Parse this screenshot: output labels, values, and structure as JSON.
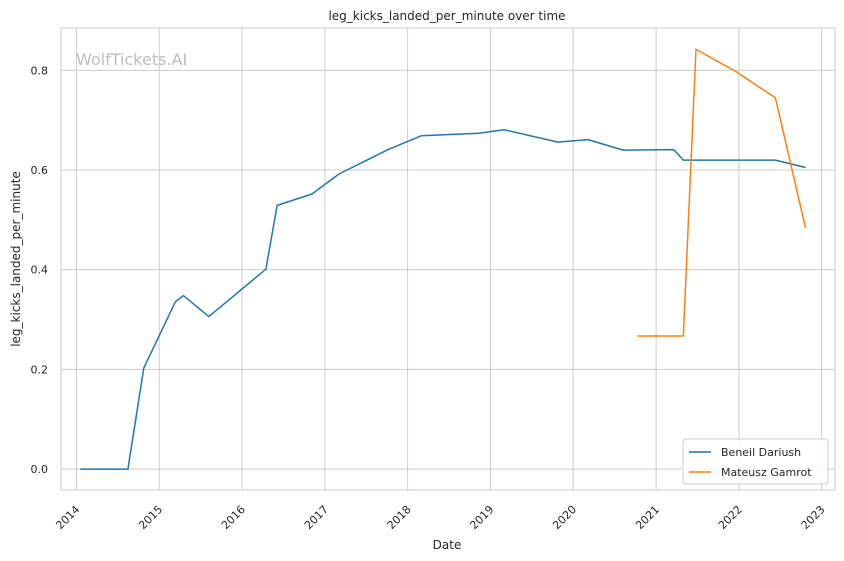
{
  "watermark": "WolfTickets.AI",
  "chart_data": {
    "type": "line",
    "title": "leg_kicks_landed_per_minute over time",
    "xlabel": "Date",
    "ylabel": "leg_kicks_landed_per_minute",
    "x_ticks": [
      "2014",
      "2015",
      "2016",
      "2017",
      "2018",
      "2019",
      "2020",
      "2021",
      "2022",
      "2023"
    ],
    "y_ticks": [
      "0.0",
      "0.2",
      "0.4",
      "0.6",
      "0.8"
    ],
    "xlim": [
      "2013-10-25",
      "2023-03-01"
    ],
    "ylim": [
      -0.042,
      0.885
    ],
    "grid": true,
    "legend_position": "lower-right",
    "series": [
      {
        "name": "Beneil Dariush",
        "color": "#1f77b4",
        "points": [
          [
            "2014-01-18",
            0.0
          ],
          [
            "2014-08-16",
            0.0
          ],
          [
            "2014-10-25",
            0.203
          ],
          [
            "2015-03-14",
            0.336
          ],
          [
            "2015-04-18",
            0.348
          ],
          [
            "2015-08-08",
            0.306
          ],
          [
            "2016-04-16",
            0.401
          ],
          [
            "2016-06-04",
            0.529
          ],
          [
            "2016-11-05",
            0.552
          ],
          [
            "2017-03-04",
            0.592
          ],
          [
            "2017-10-07",
            0.641
          ],
          [
            "2018-03-03",
            0.669
          ],
          [
            "2018-11-10",
            0.674
          ],
          [
            "2019-03-02",
            0.681
          ],
          [
            "2019-10-26",
            0.656
          ],
          [
            "2020-03-07",
            0.661
          ],
          [
            "2020-08-08",
            0.64
          ],
          [
            "2021-03-20",
            0.641
          ],
          [
            "2021-05-01",
            0.62
          ],
          [
            "2022-06-11",
            0.62
          ],
          [
            "2022-10-22",
            0.605
          ]
        ]
      },
      {
        "name": "Mateusz Gamrot",
        "color": "#ff7f0e",
        "points": [
          [
            "2020-10-11",
            0.267
          ],
          [
            "2021-05-01",
            0.267
          ],
          [
            "2021-06-26",
            0.842
          ],
          [
            "2021-12-18",
            0.798
          ],
          [
            "2022-06-11",
            0.745
          ],
          [
            "2022-10-22",
            0.484
          ]
        ]
      }
    ]
  }
}
